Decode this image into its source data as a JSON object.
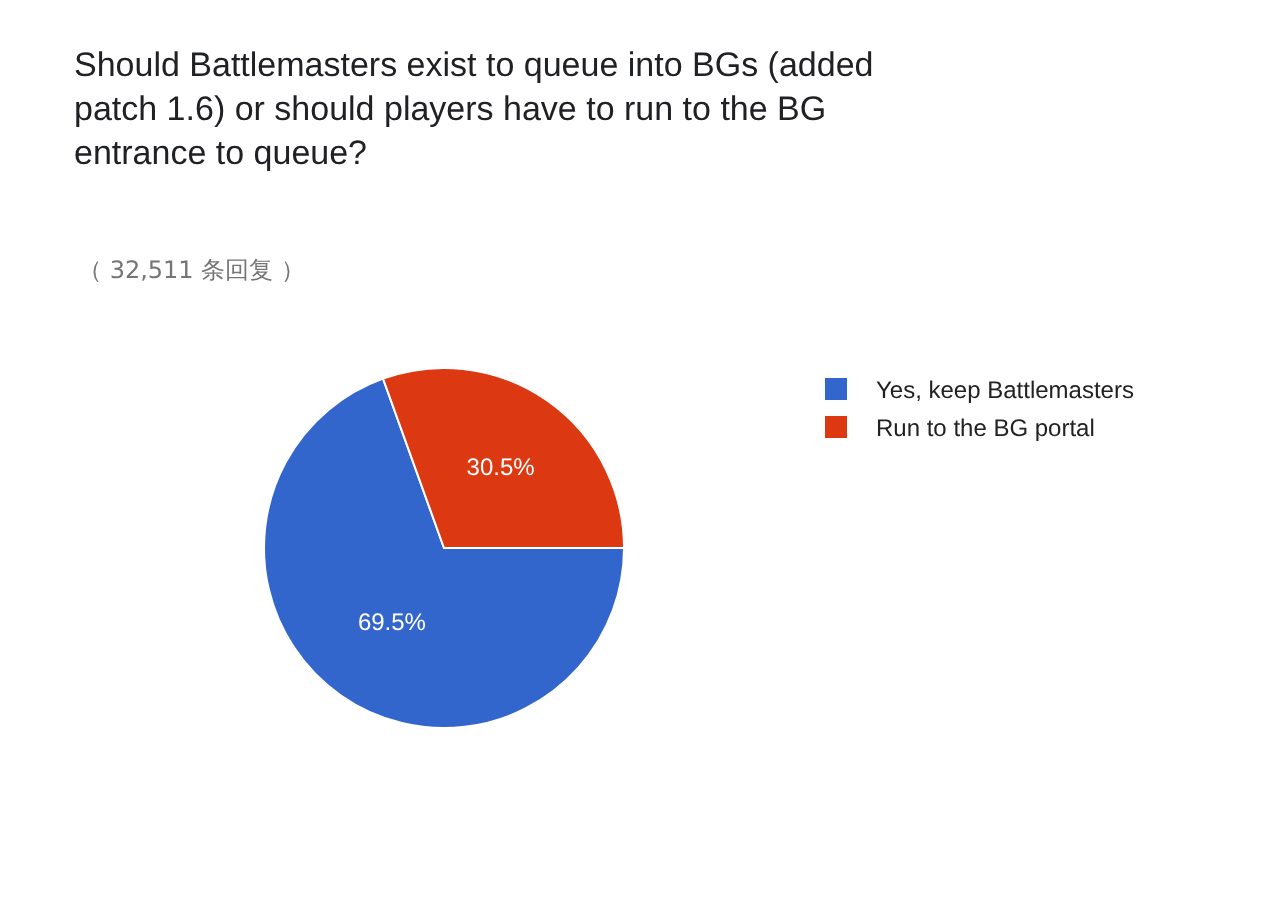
{
  "chart_data": {
    "type": "pie",
    "title": "Should Battlemasters exist to queue into BGs (added patch 1.6) or should players have to run to the BG entrance to queue?",
    "subtitle": "（ 32,511 条回复 ）",
    "categories": [
      "Yes, keep Battlemasters",
      "Run to the BG portal"
    ],
    "values": [
      69.5,
      30.5
    ],
    "colors": [
      "#3366cc",
      "#dc3912"
    ],
    "value_labels": [
      "69.5%",
      "30.5%"
    ],
    "legend": "top right"
  }
}
